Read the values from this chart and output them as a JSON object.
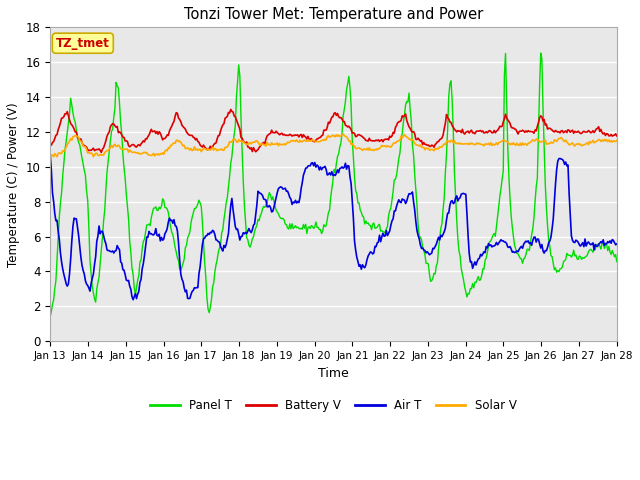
{
  "title": "Tonzi Tower Met: Temperature and Power",
  "xlabel": "Time",
  "ylabel": "Temperature (C) / Power (V)",
  "ylim": [
    0,
    18
  ],
  "yticks": [
    0,
    2,
    4,
    6,
    8,
    10,
    12,
    14,
    16,
    18
  ],
  "colors": {
    "panel_t": "#00dd00",
    "battery_v": "#dd0000",
    "air_t": "#0000dd",
    "solar_v": "#ffaa00"
  },
  "legend_labels": [
    "Panel T",
    "Battery V",
    "Air T",
    "Solar V"
  ],
  "annotation_text": "TZ_tmet",
  "annotation_box_facecolor": "#ffff99",
  "annotation_text_color": "#cc0000",
  "annotation_edge_color": "#ccaa00",
  "fig_facecolor": "#ffffff",
  "axes_facecolor": "#e8e8e8",
  "grid_color": "#ffffff",
  "n_points": 500
}
